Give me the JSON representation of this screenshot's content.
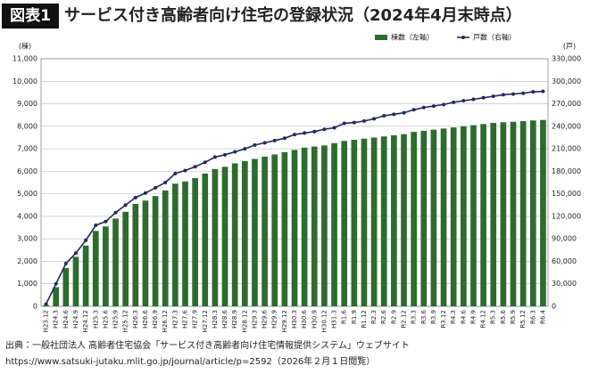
{
  "chart_data": {
    "type": "bar",
    "badge": "図表1",
    "title": "サービス付き高齢者向け住宅の登録状況（2024年4月末時点）",
    "y_unit": "(棟)",
    "y2_unit": "(戸)",
    "categories": [
      "H23.12",
      "H24.3",
      "H24.6",
      "H24.9",
      "H24.12",
      "H25.3",
      "H25.6",
      "H25.9",
      "H25.12",
      "H26.3",
      "H26.6",
      "H26.9",
      "H26.12",
      "H27.3",
      "H27.6",
      "H27.9",
      "H27.12",
      "H28.3",
      "H28.6",
      "H28.9",
      "H28.12",
      "H29.3",
      "H29.6",
      "H29.9",
      "H29.12",
      "H30.3",
      "H30.6",
      "H30.9",
      "H30.12",
      "H31.3",
      "R1.6",
      "R1.9",
      "R1.12",
      "R2.3",
      "R2.6",
      "R2.9",
      "R2.12",
      "R3.3",
      "R3.6",
      "R3.9",
      "R3.12",
      "R4.3",
      "R4.6",
      "R4.9",
      "R4.12",
      "R5.3",
      "R5.6",
      "R5.9",
      "R5.12",
      "R6.3",
      "R6.4"
    ],
    "series": [
      {
        "name": "棟数（左軸）",
        "type": "bar",
        "color": "#2e6b2e",
        "values": [
          50,
          850,
          1700,
          2200,
          2700,
          3350,
          3550,
          3900,
          4200,
          4550,
          4700,
          4900,
          5150,
          5450,
          5550,
          5700,
          5900,
          6100,
          6200,
          6350,
          6450,
          6550,
          6650,
          6750,
          6850,
          6950,
          7050,
          7100,
          7150,
          7250,
          7350,
          7400,
          7450,
          7500,
          7550,
          7600,
          7650,
          7750,
          7800,
          7850,
          7900,
          7950,
          8000,
          8050,
          8100,
          8150,
          8180,
          8200,
          8230,
          8260,
          8280
        ]
      },
      {
        "name": "戸数（右軸）",
        "type": "line",
        "axis": "y2",
        "color": "#1f2a5c",
        "values": [
          3000,
          30000,
          57000,
          71000,
          88000,
          108000,
          113000,
          125000,
          135000,
          145000,
          151000,
          158000,
          165000,
          177000,
          181000,
          186000,
          192000,
          199000,
          202000,
          206000,
          210000,
          215000,
          218000,
          221000,
          224000,
          229000,
          231000,
          233000,
          236000,
          238000,
          244000,
          245000,
          247000,
          250000,
          254000,
          256000,
          258000,
          262000,
          265000,
          267000,
          269000,
          272000,
          274000,
          276000,
          278000,
          280000,
          282000,
          283000,
          284000,
          286000,
          286500
        ]
      }
    ],
    "ylim": [
      0,
      11000
    ],
    "yticks": [
      0,
      {
        "value": 1000,
        "label": "1,000"
      },
      {
        "value": 2000,
        "label": "2,000"
      },
      {
        "value": 3000,
        "label": "3,000"
      },
      {
        "value": 4000,
        "label": "4,000"
      },
      {
        "value": 5000,
        "label": "5,000"
      },
      {
        "value": 6000,
        "label": "6,000"
      },
      {
        "value": 7000,
        "label": "7,000"
      },
      {
        "value": 8000,
        "label": "8,000"
      },
      {
        "value": 9000,
        "label": "9,000"
      },
      {
        "value": 10000,
        "label": "10,000"
      },
      {
        "value": 11000,
        "label": "11,000"
      }
    ],
    "y2lim": [
      0,
      330000
    ],
    "y2ticks": [
      0,
      {
        "value": 30000,
        "label": "30,000"
      },
      {
        "value": 60000,
        "label": "60,000"
      },
      {
        "value": 90000,
        "label": "90,000"
      },
      {
        "value": 120000,
        "label": "120,000"
      },
      {
        "value": 150000,
        "label": "150,000"
      },
      {
        "value": 180000,
        "label": "180,000"
      },
      {
        "value": 210000,
        "label": "210,000"
      },
      {
        "value": 240000,
        "label": "240,000"
      },
      {
        "value": 270000,
        "label": "270,000"
      },
      {
        "value": 300000,
        "label": "300,000"
      },
      {
        "value": 330000,
        "label": "330,000"
      }
    ],
    "grid": true,
    "legend": "top-right",
    "source": [
      "出典：一般社団法人 高齢者住宅協会「サービス付き高齢者向け住宅情報提供システム」ウェブサイト",
      "https://www.satsuki-jutaku.mlit.go.jp/journal/article/p=2592（2026年２月１日閲覧）"
    ]
  }
}
